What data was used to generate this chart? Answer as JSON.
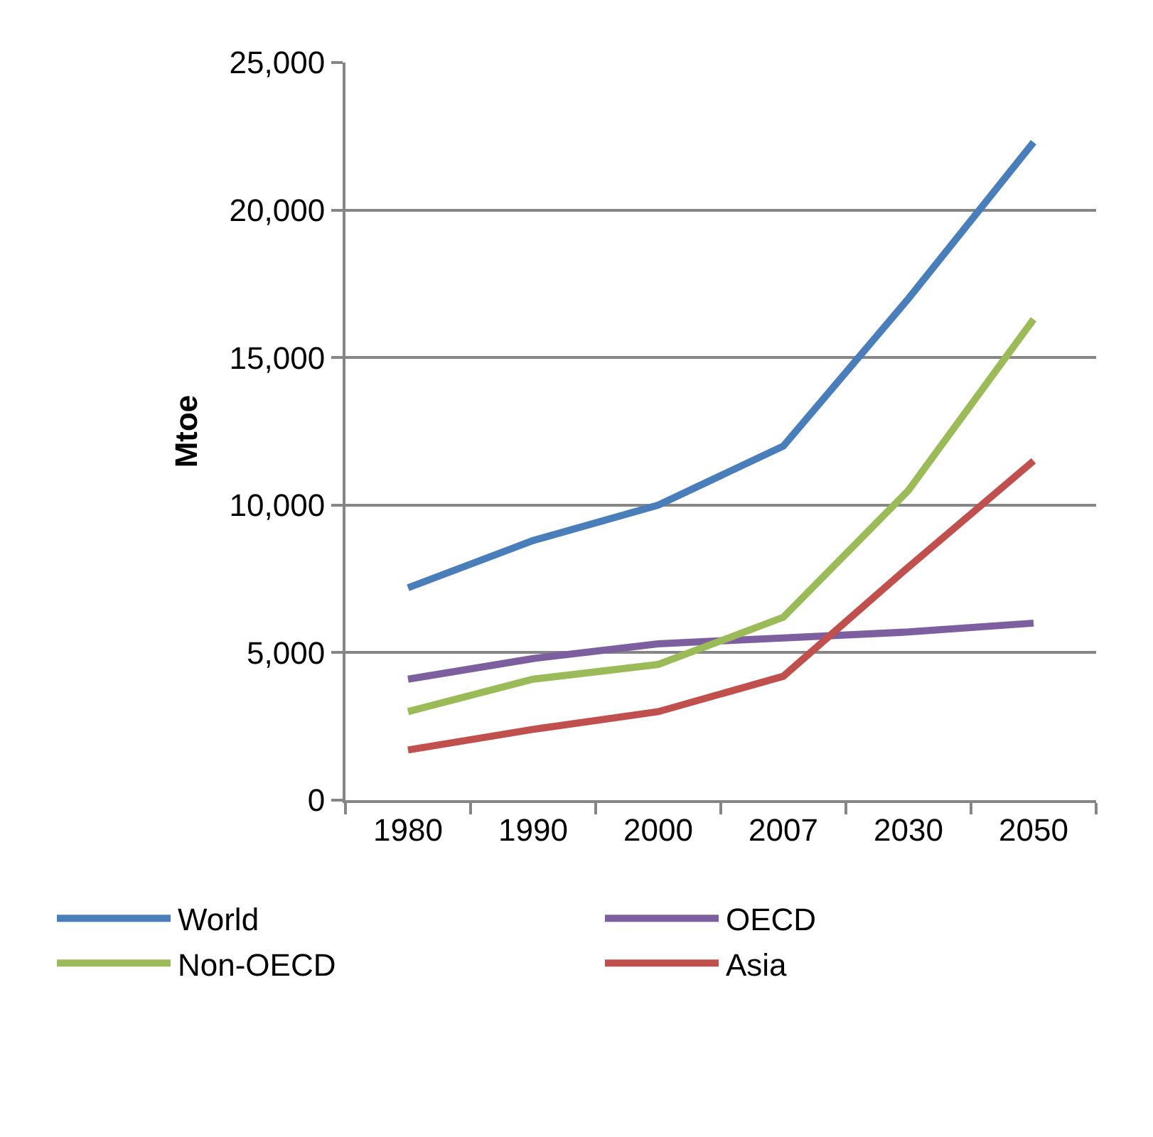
{
  "chart_data": {
    "type": "line",
    "ylabel": "Mtoe",
    "categories": [
      "1980",
      "1990",
      "2000",
      "2007",
      "2030",
      "2050"
    ],
    "series": [
      {
        "name": "World",
        "color": "#4a7ebb",
        "values": [
          7200,
          8800,
          10000,
          12000,
          17000,
          22300
        ]
      },
      {
        "name": "OECD",
        "color": "#7d5fa0",
        "values": [
          4100,
          4800,
          5300,
          5500,
          5700,
          6000
        ]
      },
      {
        "name": "Non-OECD",
        "color": "#9bbb59",
        "values": [
          3000,
          4100,
          4600,
          6200,
          10500,
          16300
        ]
      },
      {
        "name": "Asia",
        "color": "#c0504d",
        "values": [
          1700,
          2400,
          3000,
          4200,
          7900,
          11500
        ]
      }
    ],
    "ylim": [
      0,
      25000
    ],
    "yticks": [
      {
        "value": 0,
        "label": "0"
      },
      {
        "value": 5000,
        "label": "5,000"
      },
      {
        "value": 10000,
        "label": "10,000"
      },
      {
        "value": 15000,
        "label": "15,000"
      },
      {
        "value": 20000,
        "label": "20,000"
      },
      {
        "value": 25000,
        "label": "25,000"
      }
    ],
    "grid": "y",
    "legend": "bottom",
    "marker": "none",
    "line_style": "solid"
  }
}
